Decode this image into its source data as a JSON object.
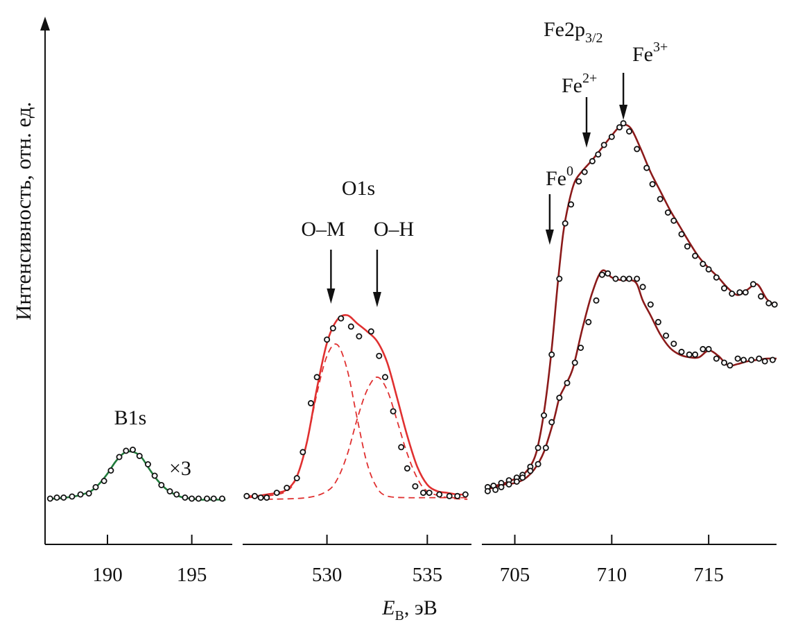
{
  "chart_data": [
    {
      "type": "line",
      "panel": "B1s",
      "xticks": [
        190,
        195
      ],
      "xlim": [
        186.3,
        197.4
      ],
      "annotations": {
        "core_level": "B1s",
        "scale": "×3"
      },
      "series": [
        {
          "color": "#1f7a3a",
          "x": [
            186.5,
            187.0,
            187.5,
            188.0,
            188.5,
            189.0,
            189.5,
            190.0,
            190.5,
            191.0,
            191.5,
            192.0,
            192.5,
            193.0,
            193.5,
            194.0,
            194.5,
            195.0,
            195.5,
            196.0,
            196.5,
            197.0
          ],
          "y": [
            0.02,
            0.02,
            0.03,
            0.04,
            0.06,
            0.09,
            0.16,
            0.26,
            0.38,
            0.46,
            0.47,
            0.42,
            0.3,
            0.19,
            0.11,
            0.06,
            0.03,
            0.02,
            0.01,
            0.01,
            0.01,
            0.01
          ],
          "points": [
            [
              186.6,
              0.02
            ],
            [
              187.0,
              0.03
            ],
            [
              187.4,
              0.03
            ],
            [
              187.9,
              0.04
            ],
            [
              188.4,
              0.06
            ],
            [
              188.9,
              0.07
            ],
            [
              189.3,
              0.13
            ],
            [
              189.8,
              0.19
            ],
            [
              190.2,
              0.29
            ],
            [
              190.7,
              0.42
            ],
            [
              191.1,
              0.48
            ],
            [
              191.5,
              0.49
            ],
            [
              191.9,
              0.43
            ],
            [
              192.4,
              0.35
            ],
            [
              192.8,
              0.24
            ],
            [
              193.2,
              0.15
            ],
            [
              193.7,
              0.09
            ],
            [
              194.1,
              0.06
            ],
            [
              194.6,
              0.03
            ],
            [
              195.0,
              0.02
            ],
            [
              195.4,
              0.02
            ],
            [
              195.9,
              0.02
            ],
            [
              196.3,
              0.02
            ],
            [
              196.8,
              0.02
            ]
          ]
        }
      ]
    },
    {
      "type": "line",
      "panel": "O1s",
      "xticks": [
        530,
        535
      ],
      "xlim": [
        525.8,
        537.2
      ],
      "annotations": {
        "core_level": "O1s",
        "arrow_left": "O–M",
        "arrow_right": "O–H"
      },
      "arrows": [
        530.2,
        532.5
      ],
      "series": [
        {
          "name": "O1s",
          "color": "#e03030",
          "x": [
            526.0,
            526.5,
            527.0,
            527.5,
            528.0,
            528.5,
            529.0,
            529.5,
            530.0,
            530.5,
            531.0,
            531.5,
            532.0,
            532.5,
            533.0,
            533.5,
            534.0,
            534.5,
            535.0,
            535.5,
            536.0,
            536.5,
            537.0
          ],
          "y": [
            0.02,
            0.02,
            0.03,
            0.04,
            0.06,
            0.14,
            0.35,
            0.68,
            0.96,
            1.1,
            1.13,
            1.08,
            1.03,
            0.97,
            0.84,
            0.62,
            0.39,
            0.2,
            0.09,
            0.05,
            0.04,
            0.03,
            0.03
          ],
          "points": [
            [
              526.0,
              0.02
            ],
            [
              526.4,
              0.02
            ],
            [
              526.7,
              0.01
            ],
            [
              527.0,
              0.01
            ],
            [
              527.5,
              0.04
            ],
            [
              528.0,
              0.07
            ],
            [
              528.5,
              0.13
            ],
            [
              528.8,
              0.29
            ],
            [
              529.2,
              0.59
            ],
            [
              529.5,
              0.75
            ],
            [
              530.0,
              0.98
            ],
            [
              530.3,
              1.05
            ],
            [
              530.7,
              1.11
            ],
            [
              531.2,
              1.06
            ],
            [
              531.6,
              1.0
            ],
            [
              532.2,
              1.03
            ],
            [
              532.6,
              0.88
            ],
            [
              532.9,
              0.75
            ],
            [
              533.3,
              0.54
            ],
            [
              533.7,
              0.32
            ],
            [
              534.0,
              0.19
            ],
            [
              534.4,
              0.08
            ],
            [
              534.8,
              0.04
            ],
            [
              535.1,
              0.04
            ],
            [
              535.6,
              0.03
            ],
            [
              536.1,
              0.02
            ],
            [
              536.5,
              0.02
            ],
            [
              536.9,
              0.03
            ]
          ]
        },
        {
          "name": "O–M",
          "color": "#e03030",
          "style": "dashed",
          "x": [
            526.0,
            527.0,
            528.0,
            528.5,
            529.0,
            529.5,
            530.0,
            530.5,
            531.0,
            531.5,
            532.0,
            532.5,
            533.0,
            534.0,
            535.0,
            537.0
          ],
          "y": [
            0.01,
            0.02,
            0.05,
            0.14,
            0.35,
            0.65,
            0.88,
            0.95,
            0.8,
            0.5,
            0.22,
            0.07,
            0.02,
            0.01,
            0.01,
            0.01
          ]
        },
        {
          "name": "O–H",
          "color": "#e03030",
          "style": "dashed",
          "x": [
            527.0,
            529.0,
            530.0,
            530.5,
            531.0,
            531.5,
            532.0,
            532.5,
            533.0,
            533.5,
            534.0,
            534.5,
            535.0,
            536.0,
            537.0
          ],
          "y": [
            0.0,
            0.01,
            0.05,
            0.12,
            0.27,
            0.49,
            0.67,
            0.75,
            0.67,
            0.48,
            0.28,
            0.13,
            0.05,
            0.01,
            0.0
          ]
        }
      ]
    },
    {
      "type": "line",
      "panel": "Fe2p3/2",
      "xticks": [
        705,
        710,
        715
      ],
      "xlim": [
        703.3,
        718.5
      ],
      "annotations": {
        "fe_main": "Fe2p",
        "fe_sub": "3/2",
        "fe0_base": "Fe",
        "fe0_sup": "0",
        "fe2_base": "Fe",
        "fe2_sup": "2+",
        "fe3_base": "Fe",
        "fe3_sup": "3+"
      },
      "arrows": [
        706.8,
        708.7,
        710.6
      ],
      "series": [
        {
          "color": "#8b1a1a",
          "x": [
            703.5,
            704.0,
            704.5,
            705.0,
            705.5,
            706.0,
            706.3,
            706.6,
            706.9,
            707.2,
            707.5,
            707.8,
            708.1,
            708.5,
            709.0,
            709.5,
            710.0,
            710.3,
            710.6,
            711.0,
            711.5,
            712.0,
            712.5,
            713.0,
            713.5,
            714.0,
            714.5,
            715.0,
            715.5,
            716.0,
            716.5,
            717.0,
            717.5,
            718.0,
            718.5
          ],
          "y": [
            0.06,
            0.08,
            0.1,
            0.13,
            0.17,
            0.28,
            0.45,
            0.72,
            1.09,
            1.55,
            1.95,
            2.18,
            2.33,
            2.41,
            2.49,
            2.58,
            2.67,
            2.72,
            2.75,
            2.72,
            2.57,
            2.4,
            2.26,
            2.12,
            2.0,
            1.88,
            1.77,
            1.69,
            1.62,
            1.54,
            1.49,
            1.53,
            1.57,
            1.46,
            1.41
          ],
          "points": [
            [
              703.6,
              0.07
            ],
            [
              703.9,
              0.08
            ],
            [
              704.3,
              0.1
            ],
            [
              704.7,
              0.12
            ],
            [
              705.1,
              0.14
            ],
            [
              705.4,
              0.16
            ],
            [
              705.8,
              0.22
            ],
            [
              706.2,
              0.36
            ],
            [
              706.5,
              0.6
            ],
            [
              706.9,
              1.05
            ],
            [
              707.3,
              1.61
            ],
            [
              707.6,
              2.02
            ],
            [
              707.9,
              2.16
            ],
            [
              708.3,
              2.33
            ],
            [
              708.6,
              2.4
            ],
            [
              709.0,
              2.48
            ],
            [
              709.3,
              2.53
            ],
            [
              709.6,
              2.6
            ],
            [
              710.0,
              2.66
            ],
            [
              710.4,
              2.73
            ],
            [
              710.6,
              2.76
            ],
            [
              710.9,
              2.7
            ],
            [
              711.3,
              2.57
            ],
            [
              711.8,
              2.43
            ],
            [
              712.1,
              2.31
            ],
            [
              712.5,
              2.2
            ],
            [
              712.9,
              2.1
            ],
            [
              713.2,
              2.04
            ],
            [
              713.6,
              1.94
            ],
            [
              713.9,
              1.85
            ],
            [
              714.3,
              1.78
            ],
            [
              714.7,
              1.72
            ],
            [
              715.0,
              1.68
            ],
            [
              715.4,
              1.62
            ],
            [
              715.8,
              1.54
            ],
            [
              716.2,
              1.5
            ],
            [
              716.6,
              1.51
            ],
            [
              716.9,
              1.51
            ],
            [
              717.3,
              1.57
            ],
            [
              717.7,
              1.48
            ],
            [
              718.1,
              1.43
            ],
            [
              718.4,
              1.42
            ]
          ]
        },
        {
          "color": "#8b1a1a",
          "x": [
            703.5,
            704.0,
            704.5,
            705.0,
            705.5,
            706.0,
            706.5,
            707.0,
            707.3,
            707.6,
            708.0,
            708.5,
            709.0,
            709.5,
            710.0,
            710.5,
            711.0,
            711.3,
            711.6,
            712.0,
            712.5,
            713.0,
            713.5,
            714.0,
            714.5,
            715.0,
            715.5,
            716.0,
            716.5,
            717.0,
            717.5,
            718.0,
            718.5
          ],
          "y": [
            0.05,
            0.07,
            0.09,
            0.1,
            0.13,
            0.2,
            0.33,
            0.56,
            0.73,
            0.82,
            0.95,
            1.25,
            1.51,
            1.67,
            1.62,
            1.6,
            1.6,
            1.57,
            1.45,
            1.34,
            1.2,
            1.1,
            1.05,
            1.03,
            1.03,
            1.08,
            1.04,
            0.97,
            0.98,
            1.0,
            1.01,
            1.02,
            1.02
          ],
          "points": [
            [
              703.6,
              0.04
            ],
            [
              704.0,
              0.05
            ],
            [
              704.3,
              0.07
            ],
            [
              704.7,
              0.09
            ],
            [
              705.1,
              0.11
            ],
            [
              705.4,
              0.14
            ],
            [
              705.8,
              0.19
            ],
            [
              706.2,
              0.24
            ],
            [
              706.6,
              0.36
            ],
            [
              706.9,
              0.55
            ],
            [
              707.3,
              0.73
            ],
            [
              707.7,
              0.84
            ],
            [
              708.1,
              0.99
            ],
            [
              708.4,
              1.1
            ],
            [
              708.8,
              1.29
            ],
            [
              709.2,
              1.45
            ],
            [
              709.5,
              1.64
            ],
            [
              709.8,
              1.65
            ],
            [
              710.2,
              1.61
            ],
            [
              710.6,
              1.61
            ],
            [
              710.9,
              1.61
            ],
            [
              711.3,
              1.61
            ],
            [
              711.6,
              1.55
            ],
            [
              712.0,
              1.42
            ],
            [
              712.4,
              1.29
            ],
            [
              712.8,
              1.19
            ],
            [
              713.2,
              1.13
            ],
            [
              713.6,
              1.07
            ],
            [
              714.0,
              1.05
            ],
            [
              714.3,
              1.05
            ],
            [
              714.7,
              1.09
            ],
            [
              715.0,
              1.09
            ],
            [
              715.4,
              1.02
            ],
            [
              715.8,
              0.99
            ],
            [
              716.1,
              0.97
            ],
            [
              716.5,
              1.02
            ],
            [
              716.8,
              1.01
            ],
            [
              717.2,
              1.01
            ],
            [
              717.6,
              1.02
            ],
            [
              717.9,
              1.0
            ],
            [
              718.3,
              1.01
            ]
          ]
        }
      ]
    }
  ],
  "axes": {
    "ylabel": "Интенсивность, отн. ед.",
    "xlabel_main": "E",
    "xlabel_sub": "B",
    "xlabel_rest": ", эВ"
  }
}
